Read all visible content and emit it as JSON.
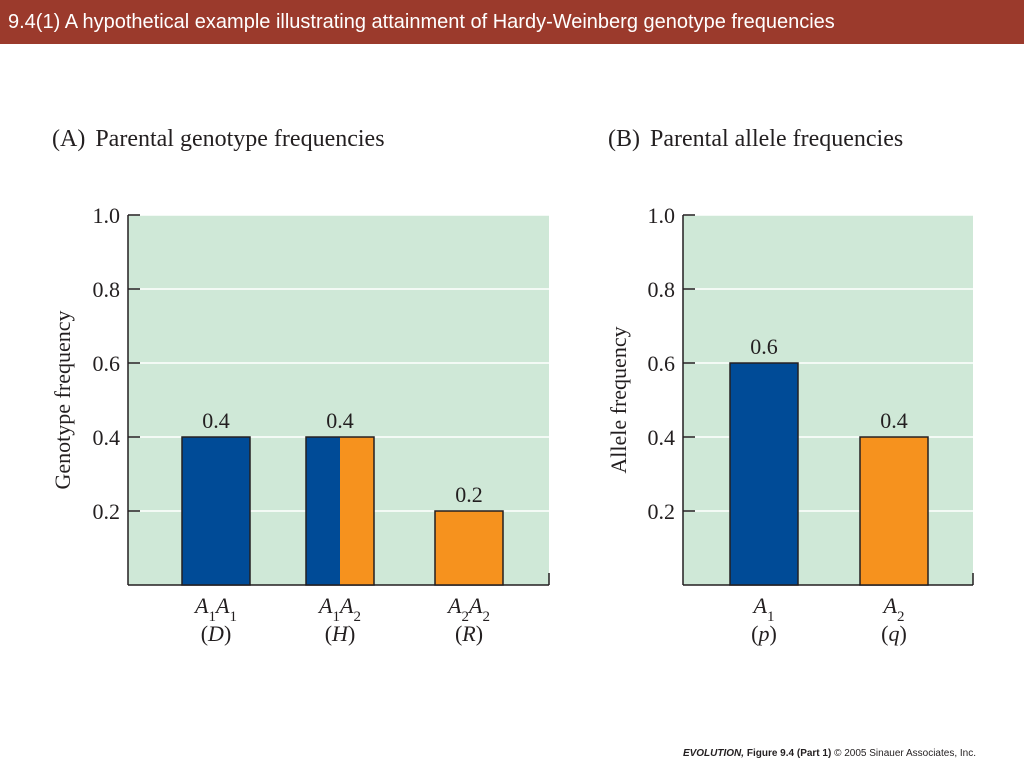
{
  "slide_title": "9.4(1)  A hypothetical example illustrating attainment of Hardy-Weinberg genotype frequencies",
  "colors": {
    "title_bg": "#9b3a2c",
    "plot_bg": "#cfe8d7",
    "allele_A1": "#004b97",
    "allele_A2": "#f6921e"
  },
  "chart_data": [
    {
      "type": "bar",
      "panel_letter": "(A)",
      "title": "Parental genotype frequencies",
      "ylabel": "Genotype frequency",
      "ylim": [
        0,
        1.0
      ],
      "yticks": [
        "0.2",
        "0.4",
        "0.6",
        "0.8",
        "1.0"
      ],
      "grid": true,
      "categories": [
        {
          "name": "A1A1",
          "symbol": "D",
          "value": 0.4,
          "label": "0.4",
          "color_split": [
            "A1",
            "A1"
          ]
        },
        {
          "name": "A1A2",
          "symbol": "H",
          "value": 0.4,
          "label": "0.4",
          "color_split": [
            "A1",
            "A2"
          ]
        },
        {
          "name": "A2A2",
          "symbol": "R",
          "value": 0.2,
          "label": "0.2",
          "color_split": [
            "A2",
            "A2"
          ]
        }
      ]
    },
    {
      "type": "bar",
      "panel_letter": "(B)",
      "title": "Parental allele frequencies",
      "ylabel": "Allele frequency",
      "ylim": [
        0,
        1.0
      ],
      "yticks": [
        "0.2",
        "0.4",
        "0.6",
        "0.8",
        "1.0"
      ],
      "grid": true,
      "categories": [
        {
          "name": "A1",
          "symbol": "p",
          "value": 0.6,
          "label": "0.6",
          "color_split": [
            "A1"
          ]
        },
        {
          "name": "A2",
          "symbol": "q",
          "value": 0.4,
          "label": "0.4",
          "color_split": [
            "A2"
          ]
        }
      ]
    }
  ],
  "footer": {
    "book": "EVOLUTION,",
    "figure": "Figure 9.4 (Part 1)",
    "copyright": "© 2005 Sinauer Associates, Inc."
  }
}
